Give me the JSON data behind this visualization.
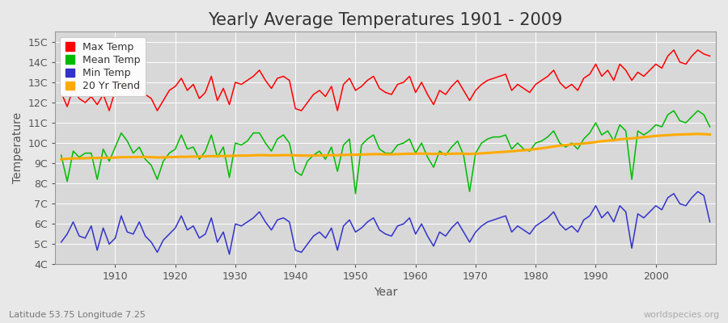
{
  "title": "Yearly Average Temperatures 1901 - 2009",
  "xlabel": "Year",
  "ylabel": "Temperature",
  "lat_lon_label": "Latitude 53.75 Longitude 7.25",
  "source_label": "worldspecies.org",
  "years": [
    1901,
    1902,
    1903,
    1904,
    1905,
    1906,
    1907,
    1908,
    1909,
    1910,
    1911,
    1912,
    1913,
    1914,
    1915,
    1916,
    1917,
    1918,
    1919,
    1920,
    1921,
    1922,
    1923,
    1924,
    1925,
    1926,
    1927,
    1928,
    1929,
    1930,
    1931,
    1932,
    1933,
    1934,
    1935,
    1936,
    1937,
    1938,
    1939,
    1940,
    1941,
    1942,
    1943,
    1944,
    1945,
    1946,
    1947,
    1948,
    1949,
    1950,
    1951,
    1952,
    1953,
    1954,
    1955,
    1956,
    1957,
    1958,
    1959,
    1960,
    1961,
    1962,
    1963,
    1964,
    1965,
    1966,
    1967,
    1968,
    1969,
    1970,
    1971,
    1972,
    1973,
    1974,
    1975,
    1976,
    1977,
    1978,
    1979,
    1980,
    1981,
    1982,
    1983,
    1984,
    1985,
    1986,
    1987,
    1988,
    1989,
    1990,
    1991,
    1992,
    1993,
    1994,
    1995,
    1996,
    1997,
    1998,
    1999,
    2000,
    2001,
    2002,
    2003,
    2004,
    2005,
    2006,
    2007,
    2008,
    2009
  ],
  "max_temp": [
    12.5,
    11.8,
    12.7,
    12.2,
    12.0,
    12.3,
    11.9,
    12.4,
    11.6,
    12.6,
    13.2,
    12.8,
    12.5,
    12.9,
    12.4,
    12.2,
    11.6,
    12.1,
    12.6,
    12.8,
    13.2,
    12.6,
    12.9,
    12.2,
    12.5,
    13.3,
    12.1,
    12.7,
    11.9,
    13.0,
    12.9,
    13.1,
    13.3,
    13.6,
    13.1,
    12.7,
    13.2,
    13.3,
    13.1,
    11.7,
    11.6,
    12.0,
    12.4,
    12.6,
    12.3,
    12.8,
    11.6,
    12.9,
    13.2,
    12.6,
    12.8,
    13.1,
    13.3,
    12.7,
    12.5,
    12.4,
    12.9,
    13.0,
    13.3,
    12.5,
    13.0,
    12.4,
    11.9,
    12.6,
    12.4,
    12.8,
    13.1,
    12.6,
    12.1,
    12.6,
    12.9,
    13.1,
    13.2,
    13.3,
    13.4,
    12.6,
    12.9,
    12.7,
    12.5,
    12.9,
    13.1,
    13.3,
    13.6,
    13.0,
    12.7,
    12.9,
    12.6,
    13.2,
    13.4,
    13.9,
    13.3,
    13.6,
    13.1,
    13.9,
    13.6,
    13.1,
    13.5,
    13.3,
    13.6,
    13.9,
    13.7,
    14.3,
    14.6,
    14.0,
    13.9,
    14.3,
    14.6,
    14.4,
    14.3
  ],
  "mean_temp": [
    9.4,
    8.1,
    9.6,
    9.3,
    9.5,
    9.5,
    8.2,
    9.7,
    9.1,
    9.8,
    10.5,
    10.1,
    9.5,
    9.8,
    9.2,
    8.9,
    8.2,
    9.1,
    9.5,
    9.7,
    10.4,
    9.7,
    9.8,
    9.2,
    9.6,
    10.4,
    9.3,
    9.8,
    8.3,
    10.0,
    9.9,
    10.1,
    10.5,
    10.5,
    10.0,
    9.6,
    10.2,
    10.4,
    10.0,
    8.6,
    8.4,
    9.1,
    9.4,
    9.6,
    9.2,
    9.8,
    8.6,
    9.9,
    10.2,
    7.5,
    9.9,
    10.2,
    10.4,
    9.7,
    9.5,
    9.5,
    9.9,
    10.0,
    10.2,
    9.5,
    10.0,
    9.3,
    8.8,
    9.6,
    9.4,
    9.8,
    10.1,
    9.4,
    7.6,
    9.5,
    10.0,
    10.2,
    10.3,
    10.3,
    10.4,
    9.7,
    10.0,
    9.7,
    9.6,
    10.0,
    10.1,
    10.3,
    10.6,
    10.0,
    9.8,
    10.0,
    9.7,
    10.2,
    10.5,
    11.0,
    10.4,
    10.6,
    10.1,
    10.9,
    10.6,
    8.2,
    10.6,
    10.4,
    10.6,
    10.9,
    10.8,
    11.4,
    11.6,
    11.1,
    11.0,
    11.3,
    11.6,
    11.4,
    10.8
  ],
  "min_temp": [
    5.1,
    5.5,
    6.1,
    5.4,
    5.3,
    5.9,
    4.7,
    5.8,
    5.0,
    5.3,
    6.4,
    5.6,
    5.5,
    6.1,
    5.4,
    5.1,
    4.6,
    5.2,
    5.5,
    5.8,
    6.4,
    5.7,
    5.9,
    5.3,
    5.5,
    6.3,
    5.1,
    5.6,
    4.5,
    6.0,
    5.9,
    6.1,
    6.3,
    6.6,
    6.1,
    5.7,
    6.2,
    6.3,
    6.1,
    4.7,
    4.6,
    5.0,
    5.4,
    5.6,
    5.3,
    5.8,
    4.7,
    5.9,
    6.2,
    5.6,
    5.8,
    6.1,
    6.3,
    5.7,
    5.5,
    5.4,
    5.9,
    6.0,
    6.3,
    5.5,
    6.0,
    5.4,
    4.9,
    5.6,
    5.4,
    5.8,
    6.1,
    5.6,
    5.1,
    5.6,
    5.9,
    6.1,
    6.2,
    6.3,
    6.4,
    5.6,
    5.9,
    5.7,
    5.5,
    5.9,
    6.1,
    6.3,
    6.6,
    6.0,
    5.7,
    5.9,
    5.6,
    6.2,
    6.4,
    6.9,
    6.3,
    6.6,
    6.1,
    6.9,
    6.6,
    4.8,
    6.5,
    6.3,
    6.6,
    6.9,
    6.7,
    7.3,
    7.5,
    7.0,
    6.9,
    7.3,
    7.6,
    7.4,
    6.1
  ],
  "trend_years": [
    1901,
    1902,
    1903,
    1904,
    1905,
    1906,
    1907,
    1908,
    1909,
    1910,
    1911,
    1912,
    1913,
    1914,
    1915,
    1916,
    1917,
    1918,
    1919,
    1920,
    1921,
    1922,
    1923,
    1924,
    1925,
    1926,
    1927,
    1928,
    1929,
    1930,
    1931,
    1932,
    1933,
    1934,
    1935,
    1936,
    1937,
    1938,
    1939,
    1940,
    1941,
    1942,
    1943,
    1944,
    1945,
    1946,
    1947,
    1948,
    1949,
    1950,
    1951,
    1952,
    1953,
    1954,
    1955,
    1956,
    1957,
    1958,
    1959,
    1960,
    1961,
    1962,
    1963,
    1964,
    1965,
    1966,
    1967,
    1968,
    1969,
    1970,
    1971,
    1972,
    1973,
    1974,
    1975,
    1976,
    1977,
    1978,
    1979,
    1980,
    1981,
    1982,
    1983,
    1984,
    1985,
    1986,
    1987,
    1988,
    1989,
    1990,
    1991,
    1992,
    1993,
    1994,
    1995,
    1996,
    1997,
    1998,
    1999,
    2000,
    2001,
    2002,
    2003,
    2004,
    2005,
    2006,
    2007,
    2008,
    2009
  ],
  "trend_vals": [
    9.2,
    9.22,
    9.24,
    9.24,
    9.25,
    9.26,
    9.26,
    9.27,
    9.27,
    9.28,
    9.3,
    9.3,
    9.3,
    9.31,
    9.31,
    9.3,
    9.29,
    9.29,
    9.3,
    9.31,
    9.32,
    9.32,
    9.33,
    9.33,
    9.34,
    9.35,
    9.35,
    9.36,
    9.36,
    9.37,
    9.38,
    9.38,
    9.39,
    9.4,
    9.4,
    9.39,
    9.39,
    9.4,
    9.4,
    9.39,
    9.38,
    9.38,
    9.38,
    9.39,
    9.39,
    9.4,
    9.4,
    9.41,
    9.42,
    9.42,
    9.43,
    9.44,
    9.45,
    9.45,
    9.44,
    9.44,
    9.45,
    9.46,
    9.47,
    9.47,
    9.48,
    9.47,
    9.46,
    9.47,
    9.46,
    9.47,
    9.48,
    9.47,
    9.46,
    9.47,
    9.49,
    9.51,
    9.53,
    9.55,
    9.57,
    9.59,
    9.62,
    9.64,
    9.67,
    9.7,
    9.74,
    9.78,
    9.83,
    9.87,
    9.9,
    9.93,
    9.95,
    9.98,
    10.01,
    10.05,
    10.09,
    10.12,
    10.14,
    10.18,
    10.21,
    10.23,
    10.26,
    10.29,
    10.32,
    10.35,
    10.37,
    10.39,
    10.41,
    10.42,
    10.43,
    10.44,
    10.45,
    10.44,
    10.42
  ],
  "max_color": "#ff0000",
  "mean_color": "#00bb00",
  "min_color": "#3333cc",
  "trend_color": "#ffaa00",
  "bg_color": "#e8e8e8",
  "plot_bg_color": "#d8d8d8",
  "grid_color": "#ffffff",
  "ylim": [
    4.0,
    15.5
  ],
  "yticks": [
    4,
    5,
    6,
    7,
    8,
    9,
    10,
    11,
    12,
    13,
    14,
    15
  ],
  "ytick_labels": [
    "4C",
    "5C",
    "6C",
    "7C",
    "8C",
    "9C",
    "10C",
    "11C",
    "12C",
    "13C",
    "14C",
    "15C"
  ],
  "xlim": [
    1900,
    2010
  ],
  "xticks": [
    1910,
    1920,
    1930,
    1940,
    1950,
    1960,
    1970,
    1980,
    1990,
    2000
  ],
  "title_fontsize": 15,
  "axis_label_fontsize": 10,
  "tick_label_fontsize": 9,
  "legend_fontsize": 9,
  "line_width": 1.1
}
